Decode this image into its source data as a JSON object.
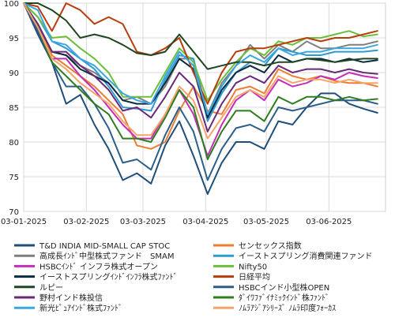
{
  "chart_data": {
    "type": "line",
    "title": "",
    "xlabel": "",
    "ylabel": "",
    "ylim": [
      70,
      100
    ],
    "grid": true,
    "legend_position": "bottom",
    "x": [
      "2025-01-03",
      "2025-01-10",
      "2025-01-17",
      "2025-01-24",
      "2025-01-31",
      "2025-02-07",
      "2025-02-14",
      "2025-02-21",
      "2025-02-28",
      "2025-03-07",
      "2025-03-14",
      "2025-03-21",
      "2025-03-28",
      "2025-04-04",
      "2025-04-11",
      "2025-04-18",
      "2025-04-25",
      "2025-05-02",
      "2025-05-09",
      "2025-05-16",
      "2025-05-23",
      "2025-05-30",
      "2025-06-06",
      "2025-06-13",
      "2025-06-20",
      "2025-06-27"
    ],
    "x_ticks": [
      "03-01-2025",
      "03-02-2025",
      "03-03-2025",
      "03-04-2025",
      "03-05-2025",
      "03-06-2025"
    ],
    "y_ticks": [
      70,
      75,
      80,
      85,
      90,
      95,
      100
    ],
    "series": [
      {
        "name": "T&D INDIA MID-SMALL CAP STOC",
        "color": "#1f4e79",
        "values": [
          100,
          95.5,
          91.5,
          85.5,
          86.8,
          82.5,
          79,
          74.5,
          75.5,
          74,
          79.5,
          83,
          78,
          72.5,
          77,
          80,
          80,
          79,
          83,
          82.5,
          85,
          87,
          87,
          85.5,
          84.8,
          84.2
        ]
      },
      {
        "name": "センセックス指数",
        "color": "#ed7d31",
        "values": [
          100,
          97,
          92.5,
          91,
          89.5,
          88,
          86,
          84,
          79.5,
          79,
          80,
          84.5,
          88,
          84.5,
          84,
          87.5,
          88,
          87,
          90.5,
          89.5,
          89,
          89.5,
          88.8,
          88.5,
          88.5,
          88
        ]
      },
      {
        "name": "高成長ｲﾝﾄﾞ中型株式ファンド　SMAM",
        "color": "#7f7f7f",
        "values": [
          100,
          97,
          93,
          92.5,
          91,
          90,
          88.5,
          86,
          86.5,
          85.5,
          88,
          92,
          92,
          84,
          88.5,
          91,
          94,
          92,
          94,
          93,
          94.5,
          93.5,
          93.5,
          94,
          94,
          94.5
        ]
      },
      {
        "name": "イーストスプリング消費関連ファンド",
        "color": "#2e9ad0",
        "values": [
          100,
          98,
          94.5,
          93.5,
          92,
          90.5,
          88,
          85,
          84.8,
          84.5,
          89,
          92.5,
          92,
          83,
          87,
          90,
          91.5,
          91,
          93.5,
          93,
          92.5,
          92.5,
          93,
          93,
          93,
          93.2
        ]
      },
      {
        "name": "HSBCｲﾝﾄﾞ インフラ株式オープン",
        "color": "#c32eb8",
        "values": [
          100,
          96,
          92,
          92,
          89.5,
          87.5,
          85,
          82.5,
          80.5,
          80.5,
          84,
          87.5,
          84,
          78,
          82.5,
          86,
          87.5,
          86,
          89,
          88,
          88.5,
          89.5,
          89,
          90,
          89.5,
          89.2
        ]
      },
      {
        "name": "Nifty50",
        "color": "#6cbf3b",
        "values": [
          100,
          98,
          95,
          95.2,
          93.5,
          92,
          90,
          86.5,
          86.5,
          86.5,
          90,
          93.5,
          91.5,
          86,
          89,
          91.5,
          93.5,
          92.5,
          94.5,
          94,
          95,
          95,
          95.5,
          96,
          95.2,
          95.5
        ]
      },
      {
        "name": "イーストスプリングｲﾝﾄﾞｲﾝﾌﾗ株式ﾌｧﾝﾄﾞ",
        "color": "#0a2a40",
        "values": [
          100,
          97,
          93,
          92.5,
          90.5,
          89.5,
          88.5,
          86,
          85.5,
          85.5,
          88.5,
          92,
          90.5,
          83.5,
          87.5,
          90,
          91,
          90,
          92.5,
          91.5,
          92,
          92,
          91.5,
          92,
          91.5,
          91.8
        ]
      },
      {
        "name": "日経平均",
        "color": "#b83d0d",
        "values": [
          100,
          99.5,
          96,
          100,
          99,
          97,
          98,
          97,
          93,
          92.5,
          93.5,
          95,
          90,
          85.5,
          90,
          93,
          93.5,
          93.5,
          94,
          94.5,
          95,
          94.5,
          95,
          95,
          95.5,
          96
        ]
      },
      {
        "name": "ルピー",
        "color": "#1e4620",
        "values": [
          100,
          100,
          99,
          97.5,
          95,
          95.5,
          95,
          94,
          92.8,
          92.5,
          93,
          95.5,
          93,
          90.5,
          91,
          91.5,
          91.5,
          91,
          91.5,
          91.5,
          92,
          91.8,
          91.5,
          91.8,
          92,
          92
        ]
      },
      {
        "name": "HSBCインド小型株OPEN",
        "color": "#2c5f8a",
        "values": [
          100,
          96,
          91.5,
          88,
          88,
          85.5,
          82,
          77,
          77.5,
          76,
          81,
          85,
          81.5,
          74.5,
          79,
          82,
          82.5,
          81.5,
          85,
          84.5,
          85,
          85.5,
          86,
          86,
          86,
          85.5
        ]
      },
      {
        "name": "野村インド株投信",
        "color": "#6a2a7a",
        "values": [
          100,
          97,
          93,
          93,
          91,
          89.5,
          87.5,
          84.5,
          85,
          83.5,
          86.5,
          90,
          88,
          81.5,
          85.5,
          88.5,
          89.5,
          88.5,
          91,
          90,
          90.5,
          90.5,
          90,
          90.5,
          90,
          89.8
        ]
      },
      {
        "name": "ﾀﾞｲﾜﾌｧﾞｲﾅﾐｯｸｲﾝﾄﾞ株ﾌｧﾝﾄﾞ",
        "color": "#2f7d1e",
        "values": [
          100,
          96.5,
          91.5,
          89.5,
          87.5,
          85.5,
          84,
          80.5,
          80.5,
          80,
          83.5,
          87.5,
          85,
          77.5,
          81.5,
          84.5,
          84.5,
          83,
          86.5,
          85.5,
          86.5,
          86.5,
          86,
          86.5,
          86,
          86.2
        ]
      },
      {
        "name": "新光ﾋﾟｭｱｲﾝﾄﾞ株式ﾌｧﾝﾄﾞ",
        "color": "#3aa7e0",
        "values": [
          100,
          99,
          94.5,
          94,
          92,
          91,
          89,
          87,
          86,
          85.5,
          89.5,
          93,
          91,
          84,
          88,
          91,
          92.5,
          91.5,
          93.5,
          92.5,
          93,
          93,
          93.5,
          93.5,
          93.5,
          94
        ]
      },
      {
        "name": "ﾉﾑﾗｱｼﾞｱｼﾘｰｽﾞ ﾉﾑﾗ印度ﾌｫｰｶｽ",
        "color": "#f4a56a",
        "values": [
          100,
          96.5,
          92,
          90.5,
          88.5,
          87,
          85.5,
          83,
          81,
          81,
          84,
          88,
          86,
          80.5,
          83.5,
          86.5,
          87.5,
          86.5,
          89.5,
          88.5,
          89,
          89,
          88.5,
          89,
          88.5,
          88.5
        ]
      }
    ]
  }
}
